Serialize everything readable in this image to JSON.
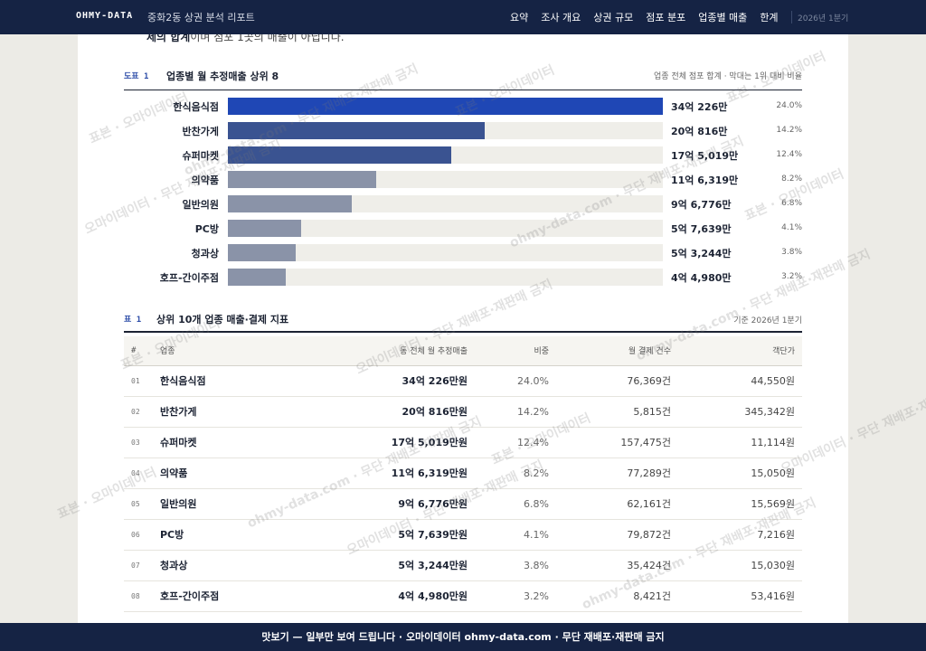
{
  "header": {
    "brand": "OHMY-DATA",
    "report_title": "중화2동 상권 분석 리포트",
    "nav": [
      "요약",
      "조사 개요",
      "상권 규모",
      "점포 분포",
      "업종별 매출",
      "한계"
    ],
    "period": "2026년 1분기"
  },
  "cut_text": {
    "bold": "제의 합계",
    "rest": "이며 점포 1곳의 매출이 아닙니다."
  },
  "figure": {
    "tag": "도표 1",
    "title": "업종별 월 추정매출 상위 8",
    "note": "업종 전체 점포 합계 · 막대는 1위 대비 비율"
  },
  "chart_data": {
    "type": "bar",
    "title": "업종별 월 추정매출 상위 8",
    "categories": [
      "한식음식점",
      "반찬가게",
      "슈퍼마켓",
      "의약품",
      "일반의원",
      "PC방",
      "청과상",
      "호프-간이주점"
    ],
    "values": [
      340226,
      200816,
      175019,
      116319,
      96776,
      57639,
      53244,
      44980
    ],
    "value_labels": [
      "34억 226만",
      "20억 816만",
      "17억 5,019만",
      "11억 6,319만",
      "9억 6,776만",
      "5억 7,639만",
      "5억 3,244만",
      "4억 4,980만"
    ],
    "shares": [
      "24.0%",
      "14.2%",
      "12.4%",
      "8.2%",
      "6.8%",
      "4.1%",
      "3.8%",
      "3.2%"
    ],
    "unit": "만원",
    "colors": [
      "#1f47b5",
      "#3a5391",
      "#3a5391",
      "#8a93a8",
      "#8a93a8",
      "#8a93a8",
      "#8a93a8",
      "#8a93a8"
    ]
  },
  "table": {
    "tag": "표 1",
    "title": "상위 10개 업종 매출·결제 지표",
    "note": "기준 2026년 1분기",
    "columns": [
      "#",
      "업종",
      "동 전체 월 추정매출",
      "비중",
      "월 결제 건수",
      "객단가"
    ],
    "rows": [
      [
        "01",
        "한식음식점",
        "34억 226만원",
        "24.0%",
        "76,369건",
        "44,550원"
      ],
      [
        "02",
        "반찬가게",
        "20억 816만원",
        "14.2%",
        "5,815건",
        "345,342원"
      ],
      [
        "03",
        "슈퍼마켓",
        "17억 5,019만원",
        "12.4%",
        "157,475건",
        "11,114원"
      ],
      [
        "04",
        "의약품",
        "11억 6,319만원",
        "8.2%",
        "77,289건",
        "15,050원"
      ],
      [
        "05",
        "일반의원",
        "9억 6,776만원",
        "6.8%",
        "62,161건",
        "15,569원"
      ],
      [
        "06",
        "PC방",
        "5억 7,639만원",
        "4.1%",
        "79,872건",
        "7,216원"
      ],
      [
        "07",
        "청과상",
        "5억 3,244만원",
        "3.8%",
        "35,424건",
        "15,030원"
      ],
      [
        "08",
        "호프-간이주점",
        "4억 4,980만원",
        "3.2%",
        "8,421건",
        "53,416원"
      ]
    ]
  },
  "watermark": [
    "표본 · 오마이데이터",
    "ohmy-data.com · 무단 재배포·재판매 금지",
    "오마이데이터 · 무단 재배포·재판매 금지"
  ],
  "footer": {
    "banner": "맛보기 — 일부만 보여 드립니다 · 오마이데이터 ohmy-data.com · 무단 재배포·재판매 금지"
  }
}
